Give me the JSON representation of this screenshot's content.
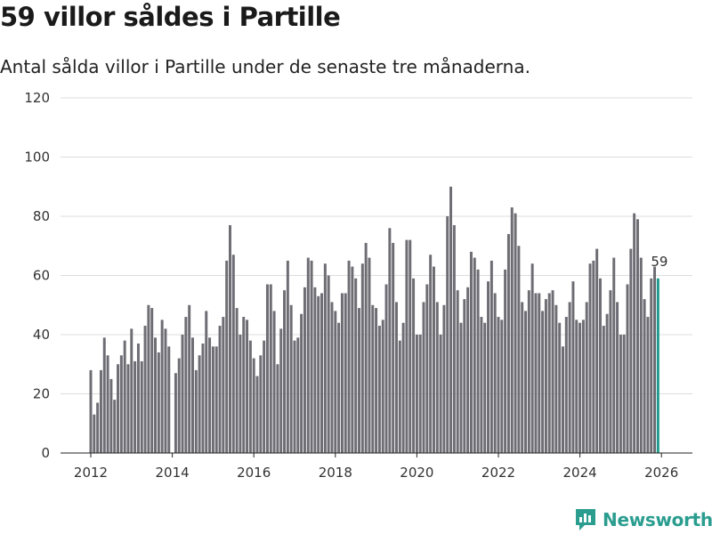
{
  "header": {
    "title": "59 villor såldes i Partille",
    "subtitle": "Antal sålda villor i Partille under de senaste tre månaderna."
  },
  "brand": {
    "name": "Newsworthy"
  },
  "colors": {
    "bar": "#6e6d74",
    "highlight": "#1e9a8d",
    "grid": "#dddddd",
    "brand": "#2a9d8f"
  },
  "chart_data": {
    "type": "bar",
    "title": "59 villor såldes i Partille",
    "subtitle": "Antal sålda villor i Partille under de senaste tre månaderna.",
    "xlabel": "",
    "ylabel": "",
    "ylim": [
      0,
      120
    ],
    "yticks": [
      0,
      20,
      40,
      60,
      80,
      100,
      120
    ],
    "xticks": [
      2012,
      2014,
      2016,
      2018,
      2020,
      2022,
      2024,
      2026
    ],
    "x_start_year": 2012,
    "x_step_years": 0.08333,
    "highlight_label": "59",
    "values": [
      28,
      13,
      17,
      28,
      39,
      33,
      25,
      18,
      30,
      33,
      38,
      30,
      42,
      31,
      37,
      31,
      43,
      50,
      49,
      39,
      34,
      45,
      42,
      36,
      0,
      27,
      32,
      40,
      46,
      50,
      39,
      28,
      33,
      37,
      48,
      39,
      36,
      36,
      43,
      46,
      65,
      77,
      67,
      49,
      40,
      46,
      45,
      38,
      32,
      26,
      33,
      38,
      57,
      57,
      48,
      30,
      42,
      55,
      65,
      50,
      38,
      39,
      47,
      56,
      66,
      65,
      56,
      53,
      54,
      64,
      60,
      51,
      48,
      44,
      54,
      54,
      65,
      63,
      59,
      49,
      64,
      71,
      66,
      50,
      49,
      43,
      45,
      57,
      76,
      71,
      51,
      38,
      44,
      72,
      72,
      59,
      40,
      40,
      51,
      57,
      67,
      63,
      51,
      40,
      50,
      80,
      90,
      77,
      55,
      44,
      52,
      56,
      68,
      66,
      62,
      46,
      44,
      58,
      65,
      54,
      46,
      45,
      62,
      74,
      83,
      81,
      70,
      51,
      48,
      55,
      64,
      54,
      54,
      48,
      52,
      54,
      55,
      50,
      44,
      36,
      46,
      51,
      58,
      45,
      44,
      45,
      51,
      64,
      65,
      69,
      59,
      43,
      47,
      55,
      66,
      51,
      40,
      40,
      57,
      69,
      81,
      79,
      66,
      52,
      46,
      59,
      63,
      59
    ]
  }
}
